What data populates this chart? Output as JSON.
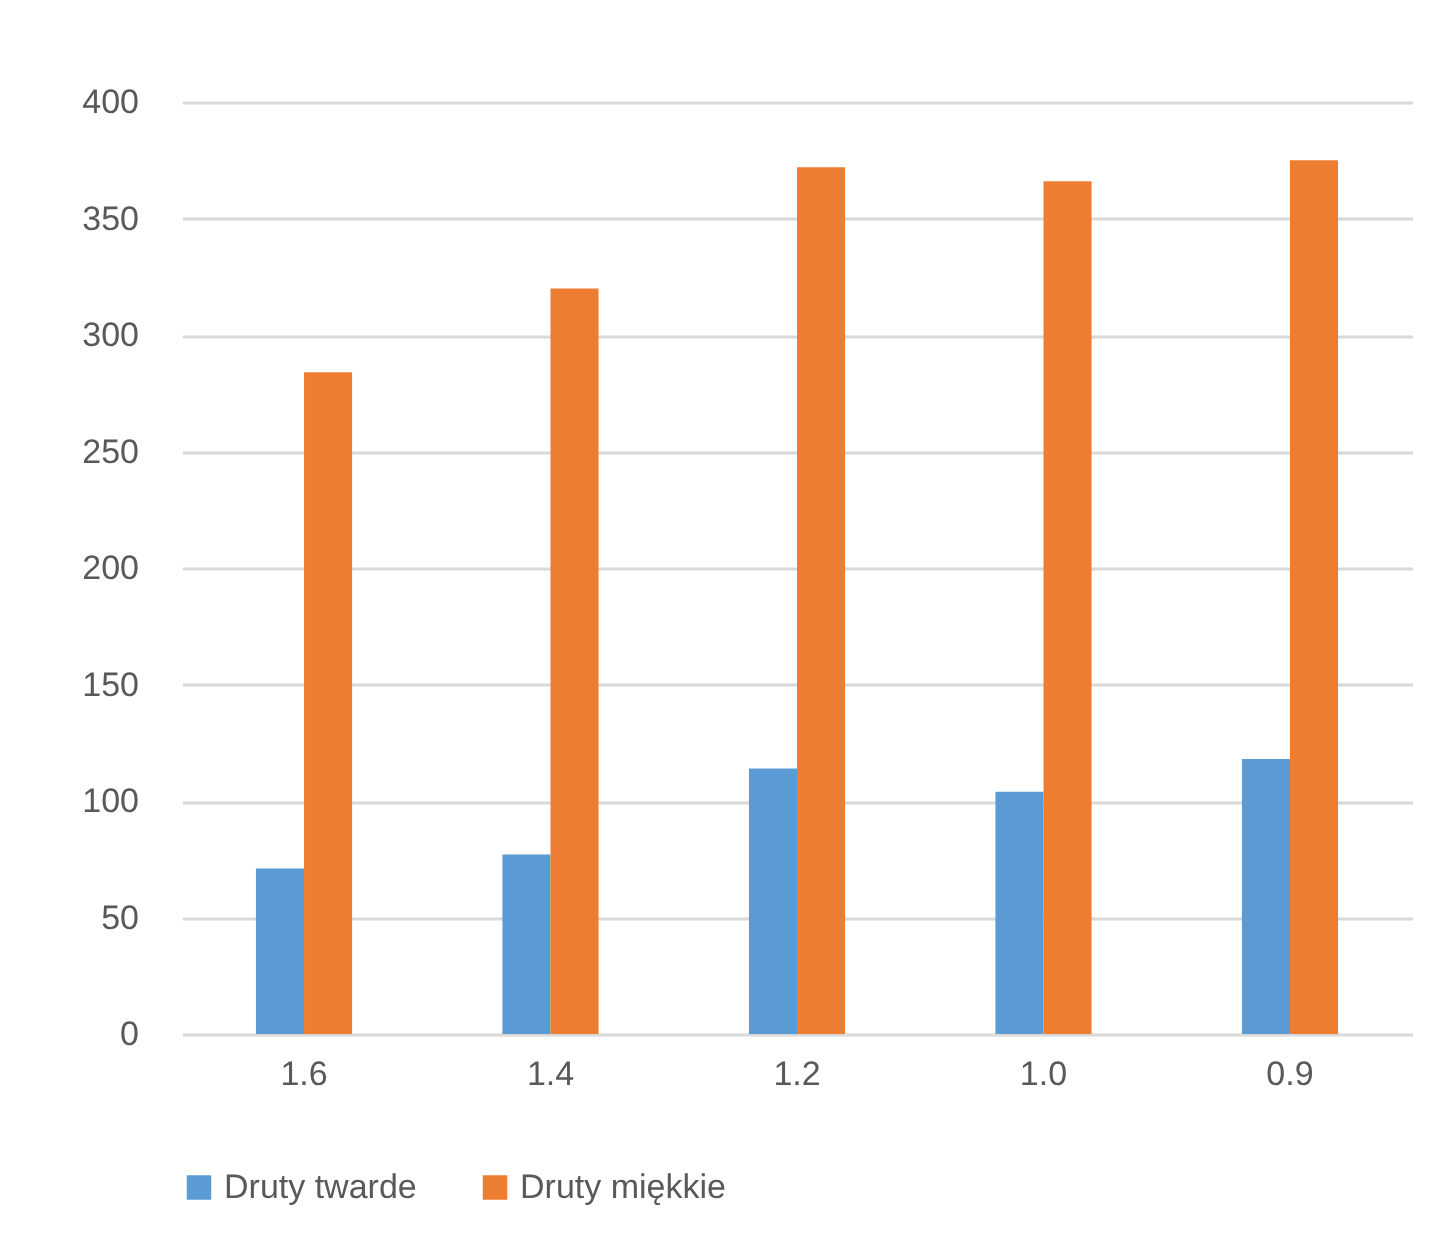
{
  "chart_data": {
    "type": "bar",
    "categories": [
      "1.6",
      "1.4",
      "1.2",
      "1.0",
      "0.9"
    ],
    "series": [
      {
        "name": "Druty twarde",
        "color": "#5b9bd5",
        "values": [
          71,
          77,
          114,
          104,
          118
        ]
      },
      {
        "name": "Druty miękkie",
        "color": "#ed7d31",
        "values": [
          284,
          320,
          372,
          366,
          375
        ]
      }
    ],
    "ylim": [
      0,
      400
    ],
    "yticks": [
      0,
      50,
      100,
      150,
      200,
      250,
      300,
      350,
      400
    ],
    "grid": "y",
    "legend": "bottom"
  }
}
